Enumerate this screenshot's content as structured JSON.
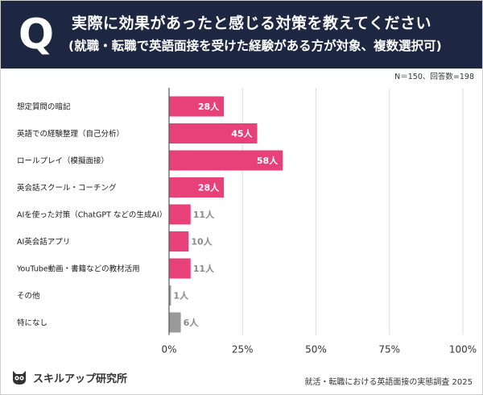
{
  "header": {
    "badge": "Q",
    "title_line1": "実際に効果があったと感じる対策を教えてください",
    "title_line2": "(就職・転職で英語面接を受けた経験がある方が対象、複数選択可)"
  },
  "sample_note": "N＝150、回答数=198",
  "footer": {
    "logo_text": "スキルアップ研究所",
    "source": "就活・転職における英語面接の実態調査 2025"
  },
  "colors": {
    "accent": "#e8417a",
    "neutral": "#9a9a9a",
    "header_bg": "#1d2742"
  },
  "chart_data": {
    "type": "bar",
    "orientation": "horizontal",
    "categories": [
      "想定質問の暗記",
      "英語での経験整理（自己分析）",
      "ロールプレイ（模擬面接）",
      "英会話スクール・コーチング",
      "AIを使った対策（ChatGPT などの生成AI）",
      "AI英会話アプリ",
      "YouTube動画・書籍などの教材活用",
      "その他",
      "特になし"
    ],
    "values": [
      28,
      45,
      58,
      28,
      11,
      10,
      11,
      1,
      6
    ],
    "data_labels": [
      "28人",
      "45人",
      "58人",
      "28人",
      "11人",
      "10人",
      "11人",
      "1人",
      "6人"
    ],
    "bar_colors": [
      "#e8417a",
      "#e8417a",
      "#e8417a",
      "#e8417a",
      "#e8417a",
      "#e8417a",
      "#e8417a",
      "#9a9a9a",
      "#9a9a9a"
    ],
    "total_n": 150,
    "x_ticks": [
      "0%",
      "25%",
      "50%",
      "75%",
      "100%"
    ],
    "xlim": [
      0,
      100
    ],
    "grid": true,
    "legend": "none"
  }
}
